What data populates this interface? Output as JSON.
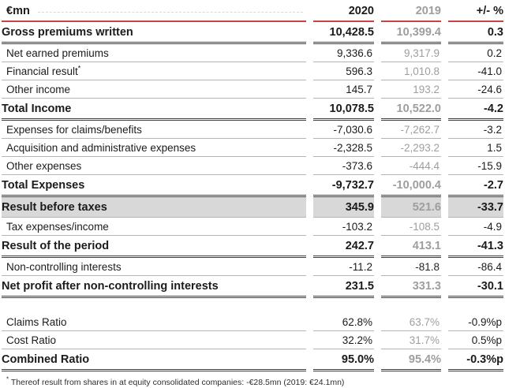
{
  "table": {
    "header": {
      "col_label": "€mn",
      "col_2020": "2020",
      "col_2019": "2019",
      "col_change": "+/- %"
    },
    "rows": [
      {
        "label": "Gross premiums written",
        "v2020": "10,428.5",
        "v2019": "10,399.4",
        "change": "0.3",
        "style": "bold",
        "border": "dark"
      },
      {
        "label": "Net earned premiums",
        "v2020": "9,336.6",
        "v2019": "9,317.9",
        "change": "0.2",
        "style": "normal",
        "border": "gray"
      },
      {
        "label": "Financial result",
        "sup": "*",
        "v2020": "596.3",
        "v2019": "1,010.8",
        "change": "-41.0",
        "style": "normal",
        "border": "gray"
      },
      {
        "label": "Other income",
        "v2020": "145.7",
        "v2019": "193.2",
        "change": "-24.6",
        "style": "normal",
        "border": "gray"
      },
      {
        "label": "Total Income",
        "v2020": "10,078.5",
        "v2019": "10,522.0",
        "change": "-4.2",
        "style": "bold",
        "border": "dark"
      },
      {
        "label": "Expenses for claims/benefits",
        "v2020": "-7,030.6",
        "v2019": "-7,262.7",
        "change": "-3.2",
        "style": "normal",
        "border": "gray"
      },
      {
        "label": "Acquisition and administrative expenses",
        "v2020": "-2,328.5",
        "v2019": "-2,293.2",
        "change": "1.5",
        "style": "normal",
        "border": "gray"
      },
      {
        "label": "Other expenses",
        "v2020": "-373.6",
        "v2019": "-444.4",
        "change": "-15.9",
        "style": "normal",
        "border": "gray"
      },
      {
        "label": "Total Expenses",
        "v2020": "-9,732.7",
        "v2019": "-10,000.4",
        "change": "-2.7",
        "style": "bold",
        "border": "dark"
      },
      {
        "label": "Result before taxes",
        "v2020": "345.9",
        "v2019": "521.6",
        "change": "-33.7",
        "style": "bold",
        "border": "gray",
        "highlight": true
      },
      {
        "label": "Tax expenses/income",
        "v2020": "-103.2",
        "v2019": "-108.5",
        "change": "-4.9",
        "style": "normal",
        "border": "gray"
      },
      {
        "label": "Result of the period",
        "v2020": "242.7",
        "v2019": "413.1",
        "change": "-41.3",
        "style": "bold",
        "border": "dark"
      },
      {
        "label": "Non-controlling interests",
        "v2020": "-11.2",
        "v2019": "-81.8",
        "change": "-86.4",
        "style": "normal",
        "border": "gray",
        "v2019_dark": true
      },
      {
        "label": "Net profit after non-controlling interests",
        "v2020": "231.5",
        "v2019": "331.3",
        "change": "-30.1",
        "style": "bold",
        "border": "dark",
        "gap_after": true
      },
      {
        "label": "Claims Ratio",
        "v2020": "62.8%",
        "v2019": "63.7%",
        "change": "-0.9%p",
        "style": "normal",
        "border": "gray"
      },
      {
        "label": "Cost Ratio",
        "v2020": "32.2%",
        "v2019": "31.7%",
        "change": "0.5%p",
        "style": "normal",
        "border": "gray"
      },
      {
        "label": "Combined Ratio",
        "v2020": "95.0%",
        "v2019": "95.4%",
        "change": "-0.3%p",
        "style": "bold",
        "border": "dark"
      }
    ],
    "footnote": {
      "marker": "*",
      "text": " Thereof result from shares in at equity consolidated companies: -€28.5mn (2019: €24.1mn)"
    }
  },
  "colors": {
    "accent_red": "#c94343",
    "muted_gray_text": "#9e9e9e",
    "highlight_bg": "#d8d8d8",
    "dark_rule": "#3d3d3d",
    "light_rule": "#b5b5b5"
  }
}
